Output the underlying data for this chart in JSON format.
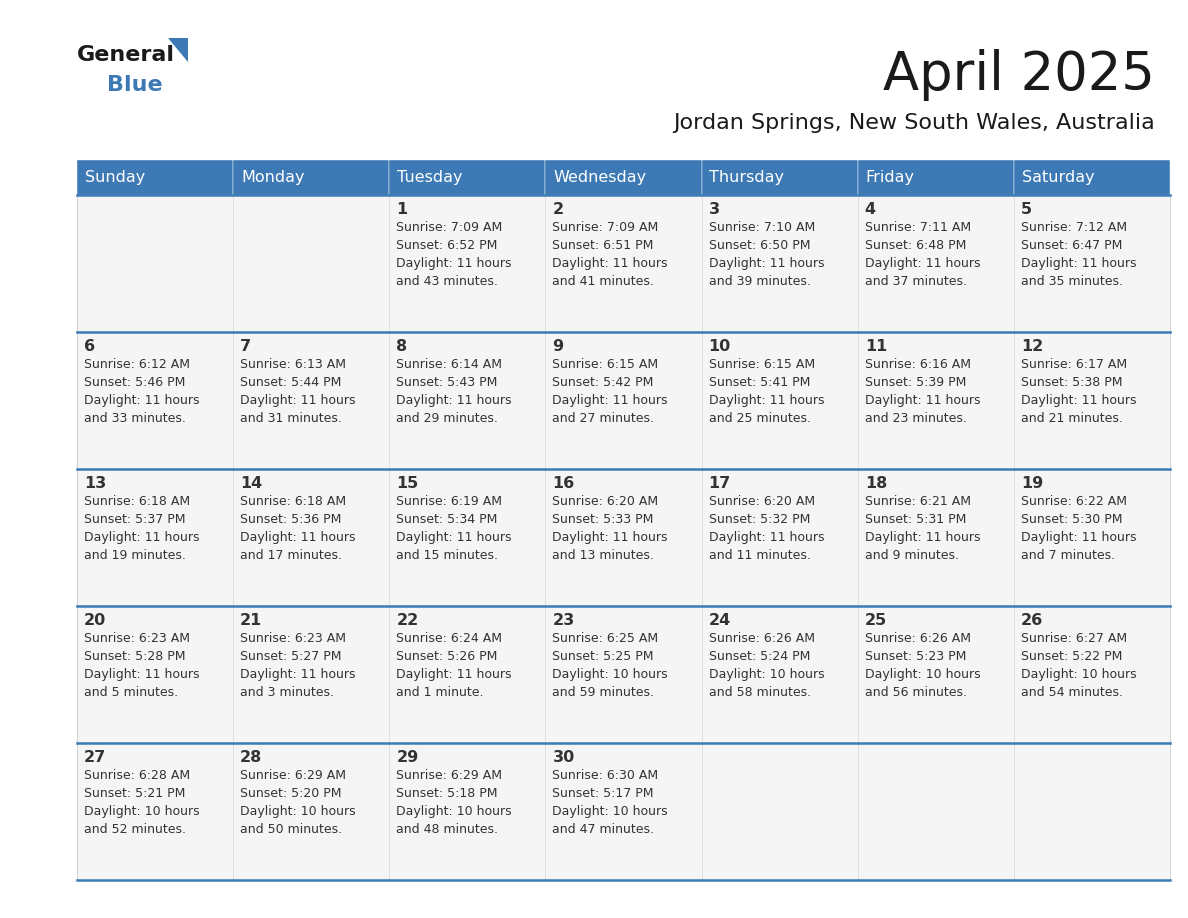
{
  "title": "April 2025",
  "subtitle": "Jordan Springs, New South Wales, Australia",
  "days_of_week": [
    "Sunday",
    "Monday",
    "Tuesday",
    "Wednesday",
    "Thursday",
    "Friday",
    "Saturday"
  ],
  "header_bg": "#3d7ab5",
  "header_text": "#ffffff",
  "cell_bg": "#f5f5f5",
  "border_color": "#3d7ab5",
  "text_color": "#333333",
  "title_color": "#1a1a1a",
  "logo_text_color": "#1a1a1a",
  "logo_blue_color": "#3d7ab5",
  "calendar_data": [
    [
      {
        "day": "",
        "sunrise": "",
        "sunset": "",
        "daylight": ""
      },
      {
        "day": "",
        "sunrise": "",
        "sunset": "",
        "daylight": ""
      },
      {
        "day": "1",
        "sunrise": "Sunrise: 7:09 AM",
        "sunset": "Sunset: 6:52 PM",
        "daylight": "Daylight: 11 hours\nand 43 minutes."
      },
      {
        "day": "2",
        "sunrise": "Sunrise: 7:09 AM",
        "sunset": "Sunset: 6:51 PM",
        "daylight": "Daylight: 11 hours\nand 41 minutes."
      },
      {
        "day": "3",
        "sunrise": "Sunrise: 7:10 AM",
        "sunset": "Sunset: 6:50 PM",
        "daylight": "Daylight: 11 hours\nand 39 minutes."
      },
      {
        "day": "4",
        "sunrise": "Sunrise: 7:11 AM",
        "sunset": "Sunset: 6:48 PM",
        "daylight": "Daylight: 11 hours\nand 37 minutes."
      },
      {
        "day": "5",
        "sunrise": "Sunrise: 7:12 AM",
        "sunset": "Sunset: 6:47 PM",
        "daylight": "Daylight: 11 hours\nand 35 minutes."
      }
    ],
    [
      {
        "day": "6",
        "sunrise": "Sunrise: 6:12 AM",
        "sunset": "Sunset: 5:46 PM",
        "daylight": "Daylight: 11 hours\nand 33 minutes."
      },
      {
        "day": "7",
        "sunrise": "Sunrise: 6:13 AM",
        "sunset": "Sunset: 5:44 PM",
        "daylight": "Daylight: 11 hours\nand 31 minutes."
      },
      {
        "day": "8",
        "sunrise": "Sunrise: 6:14 AM",
        "sunset": "Sunset: 5:43 PM",
        "daylight": "Daylight: 11 hours\nand 29 minutes."
      },
      {
        "day": "9",
        "sunrise": "Sunrise: 6:15 AM",
        "sunset": "Sunset: 5:42 PM",
        "daylight": "Daylight: 11 hours\nand 27 minutes."
      },
      {
        "day": "10",
        "sunrise": "Sunrise: 6:15 AM",
        "sunset": "Sunset: 5:41 PM",
        "daylight": "Daylight: 11 hours\nand 25 minutes."
      },
      {
        "day": "11",
        "sunrise": "Sunrise: 6:16 AM",
        "sunset": "Sunset: 5:39 PM",
        "daylight": "Daylight: 11 hours\nand 23 minutes."
      },
      {
        "day": "12",
        "sunrise": "Sunrise: 6:17 AM",
        "sunset": "Sunset: 5:38 PM",
        "daylight": "Daylight: 11 hours\nand 21 minutes."
      }
    ],
    [
      {
        "day": "13",
        "sunrise": "Sunrise: 6:18 AM",
        "sunset": "Sunset: 5:37 PM",
        "daylight": "Daylight: 11 hours\nand 19 minutes."
      },
      {
        "day": "14",
        "sunrise": "Sunrise: 6:18 AM",
        "sunset": "Sunset: 5:36 PM",
        "daylight": "Daylight: 11 hours\nand 17 minutes."
      },
      {
        "day": "15",
        "sunrise": "Sunrise: 6:19 AM",
        "sunset": "Sunset: 5:34 PM",
        "daylight": "Daylight: 11 hours\nand 15 minutes."
      },
      {
        "day": "16",
        "sunrise": "Sunrise: 6:20 AM",
        "sunset": "Sunset: 5:33 PM",
        "daylight": "Daylight: 11 hours\nand 13 minutes."
      },
      {
        "day": "17",
        "sunrise": "Sunrise: 6:20 AM",
        "sunset": "Sunset: 5:32 PM",
        "daylight": "Daylight: 11 hours\nand 11 minutes."
      },
      {
        "day": "18",
        "sunrise": "Sunrise: 6:21 AM",
        "sunset": "Sunset: 5:31 PM",
        "daylight": "Daylight: 11 hours\nand 9 minutes."
      },
      {
        "day": "19",
        "sunrise": "Sunrise: 6:22 AM",
        "sunset": "Sunset: 5:30 PM",
        "daylight": "Daylight: 11 hours\nand 7 minutes."
      }
    ],
    [
      {
        "day": "20",
        "sunrise": "Sunrise: 6:23 AM",
        "sunset": "Sunset: 5:28 PM",
        "daylight": "Daylight: 11 hours\nand 5 minutes."
      },
      {
        "day": "21",
        "sunrise": "Sunrise: 6:23 AM",
        "sunset": "Sunset: 5:27 PM",
        "daylight": "Daylight: 11 hours\nand 3 minutes."
      },
      {
        "day": "22",
        "sunrise": "Sunrise: 6:24 AM",
        "sunset": "Sunset: 5:26 PM",
        "daylight": "Daylight: 11 hours\nand 1 minute."
      },
      {
        "day": "23",
        "sunrise": "Sunrise: 6:25 AM",
        "sunset": "Sunset: 5:25 PM",
        "daylight": "Daylight: 10 hours\nand 59 minutes."
      },
      {
        "day": "24",
        "sunrise": "Sunrise: 6:26 AM",
        "sunset": "Sunset: 5:24 PM",
        "daylight": "Daylight: 10 hours\nand 58 minutes."
      },
      {
        "day": "25",
        "sunrise": "Sunrise: 6:26 AM",
        "sunset": "Sunset: 5:23 PM",
        "daylight": "Daylight: 10 hours\nand 56 minutes."
      },
      {
        "day": "26",
        "sunrise": "Sunrise: 6:27 AM",
        "sunset": "Sunset: 5:22 PM",
        "daylight": "Daylight: 10 hours\nand 54 minutes."
      }
    ],
    [
      {
        "day": "27",
        "sunrise": "Sunrise: 6:28 AM",
        "sunset": "Sunset: 5:21 PM",
        "daylight": "Daylight: 10 hours\nand 52 minutes."
      },
      {
        "day": "28",
        "sunrise": "Sunrise: 6:29 AM",
        "sunset": "Sunset: 5:20 PM",
        "daylight": "Daylight: 10 hours\nand 50 minutes."
      },
      {
        "day": "29",
        "sunrise": "Sunrise: 6:29 AM",
        "sunset": "Sunset: 5:18 PM",
        "daylight": "Daylight: 10 hours\nand 48 minutes."
      },
      {
        "day": "30",
        "sunrise": "Sunrise: 6:30 AM",
        "sunset": "Sunset: 5:17 PM",
        "daylight": "Daylight: 10 hours\nand 47 minutes."
      },
      {
        "day": "",
        "sunrise": "",
        "sunset": "",
        "daylight": ""
      },
      {
        "day": "",
        "sunrise": "",
        "sunset": "",
        "daylight": ""
      },
      {
        "day": "",
        "sunrise": "",
        "sunset": "",
        "daylight": ""
      }
    ]
  ]
}
